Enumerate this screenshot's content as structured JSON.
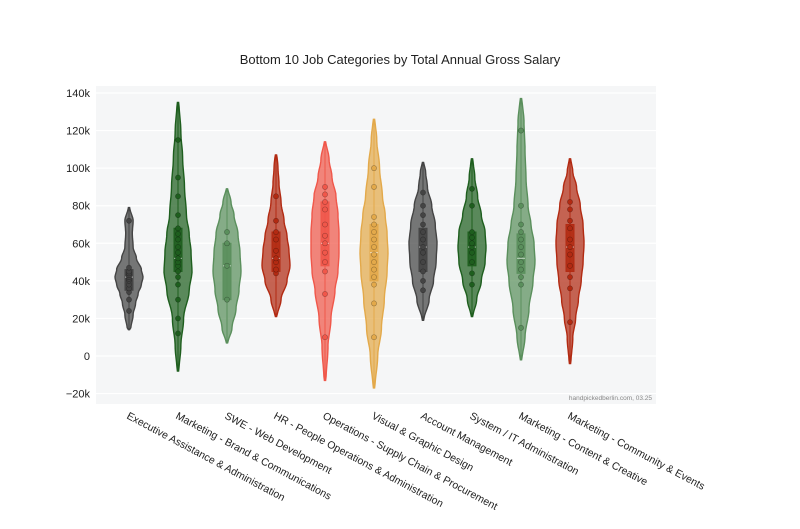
{
  "chart_data": {
    "type": "violin",
    "title": "Bottom 10 Job Categories by Total Annual Gross Salary",
    "xlabel": "",
    "ylabel": "",
    "ylim": [
      -25000,
      145000
    ],
    "yticks": [
      -20000,
      0,
      20000,
      40000,
      60000,
      80000,
      100000,
      120000,
      140000
    ],
    "ytick_labels": [
      "−20k",
      "0",
      "20k",
      "40k",
      "60k",
      "80k",
      "100k",
      "120k",
      "140k"
    ],
    "credit": "handpickedberlin.com, 03.25",
    "grid": true,
    "series": [
      {
        "name": "Executive Assistance & Administration",
        "color": "#444444",
        "min": 14000,
        "max": 79000,
        "q1": 35000,
        "median": 42000,
        "q3": 46000,
        "profile": [
          [
            14000,
            2
          ],
          [
            22000,
            5
          ],
          [
            28000,
            8
          ],
          [
            33000,
            11
          ],
          [
            38000,
            15
          ],
          [
            42000,
            17
          ],
          [
            46000,
            15
          ],
          [
            52000,
            9
          ],
          [
            58000,
            5
          ],
          [
            65000,
            4
          ],
          [
            72000,
            5
          ],
          [
            79000,
            1
          ]
        ],
        "points": [
          24000,
          30000,
          34000,
          36000,
          38000,
          40000,
          41000,
          42000,
          43000,
          44000,
          45000,
          47000,
          72000
        ]
      },
      {
        "name": "Marketing - Brand & Communications",
        "color": "#1e5e1e",
        "min": -8000,
        "max": 135000,
        "q1": 45000,
        "median": 52000,
        "q3": 68000,
        "profile": [
          [
            -8000,
            1
          ],
          [
            5000,
            3
          ],
          [
            20000,
            6
          ],
          [
            35000,
            12
          ],
          [
            45000,
            15
          ],
          [
            55000,
            14
          ],
          [
            65000,
            12
          ],
          [
            75000,
            9
          ],
          [
            90000,
            7
          ],
          [
            105000,
            5
          ],
          [
            120000,
            3
          ],
          [
            135000,
            1
          ]
        ],
        "points": [
          12000,
          20000,
          30000,
          38000,
          42000,
          45000,
          48000,
          50000,
          52000,
          55000,
          58000,
          62000,
          65000,
          68000,
          75000,
          85000,
          95000,
          115000
        ]
      },
      {
        "name": "SWE - Web Development",
        "color": "#5a8f5c",
        "min": 7000,
        "max": 89000,
        "q1": 30000,
        "median": 48000,
        "q3": 60000,
        "profile": [
          [
            7000,
            1
          ],
          [
            15000,
            5
          ],
          [
            25000,
            9
          ],
          [
            35000,
            12
          ],
          [
            45000,
            14
          ],
          [
            55000,
            13
          ],
          [
            65000,
            11
          ],
          [
            75000,
            7
          ],
          [
            82000,
            4
          ],
          [
            89000,
            1
          ]
        ],
        "points": [
          30000,
          48000,
          60000,
          66000
        ]
      },
      {
        "name": "HR - People Operations & Administration",
        "color": "#b22a12",
        "min": 21000,
        "max": 107000,
        "q1": 45000,
        "median": 52000,
        "q3": 66000,
        "profile": [
          [
            21000,
            1
          ],
          [
            30000,
            5
          ],
          [
            40000,
            11
          ],
          [
            48000,
            14
          ],
          [
            56000,
            13
          ],
          [
            64000,
            11
          ],
          [
            72000,
            8
          ],
          [
            82000,
            5
          ],
          [
            92000,
            3
          ],
          [
            100000,
            2
          ],
          [
            107000,
            1
          ]
        ],
        "points": [
          44000,
          46000,
          50000,
          52000,
          56000,
          62000,
          66000,
          72000,
          85000
        ]
      },
      {
        "name": "Operations - Supply Chain & Procurement",
        "color": "#f0574a",
        "min": -13000,
        "max": 114000,
        "q1": 48000,
        "median": 60000,
        "q3": 82000,
        "profile": [
          [
            -13000,
            1
          ],
          [
            5000,
            3
          ],
          [
            20000,
            6
          ],
          [
            35000,
            10
          ],
          [
            45000,
            13
          ],
          [
            55000,
            14
          ],
          [
            65000,
            14
          ],
          [
            75000,
            13
          ],
          [
            85000,
            11
          ],
          [
            95000,
            7
          ],
          [
            105000,
            4
          ],
          [
            114000,
            1
          ]
        ],
        "points": [
          10000,
          33000,
          45000,
          50000,
          55000,
          60000,
          64000,
          70000,
          78000,
          82000,
          86000,
          90000
        ]
      },
      {
        "name": "Visual & Graphic Design",
        "color": "#e3a94a",
        "min": -17000,
        "max": 126000,
        "q1": 40000,
        "median": 55000,
        "q3": 70000,
        "profile": [
          [
            -17000,
            1
          ],
          [
            0,
            4
          ],
          [
            15000,
            8
          ],
          [
            30000,
            11
          ],
          [
            45000,
            14
          ],
          [
            55000,
            15
          ],
          [
            65000,
            14
          ],
          [
            75000,
            12
          ],
          [
            85000,
            9
          ],
          [
            100000,
            6
          ],
          [
            115000,
            3
          ],
          [
            126000,
            1
          ]
        ],
        "points": [
          10000,
          28000,
          38000,
          42000,
          46000,
          50000,
          54000,
          58000,
          62000,
          66000,
          70000,
          74000,
          90000,
          100000
        ]
      },
      {
        "name": "Account Management",
        "color": "#444444",
        "min": 19000,
        "max": 103000,
        "q1": 45000,
        "median": 58000,
        "q3": 68000,
        "profile": [
          [
            19000,
            1
          ],
          [
            30000,
            7
          ],
          [
            40000,
            12
          ],
          [
            50000,
            15
          ],
          [
            60000,
            16
          ],
          [
            70000,
            14
          ],
          [
            80000,
            10
          ],
          [
            90000,
            5
          ],
          [
            98000,
            3
          ],
          [
            103000,
            1
          ]
        ],
        "points": [
          35000,
          40000,
          45000,
          50000,
          55000,
          58000,
          62000,
          66000,
          70000,
          75000,
          80000,
          87000
        ]
      },
      {
        "name": "System / IT Administration",
        "color": "#1e5e1e",
        "min": 21000,
        "max": 105000,
        "q1": 48000,
        "median": 58000,
        "q3": 66000,
        "profile": [
          [
            21000,
            1
          ],
          [
            30000,
            5
          ],
          [
            40000,
            10
          ],
          [
            50000,
            14
          ],
          [
            58000,
            15
          ],
          [
            66000,
            14
          ],
          [
            75000,
            10
          ],
          [
            85000,
            6
          ],
          [
            95000,
            3
          ],
          [
            105000,
            1
          ]
        ],
        "points": [
          38000,
          44000,
          50000,
          55000,
          58000,
          60000,
          63000,
          66000,
          80000,
          89000
        ]
      },
      {
        "name": "Marketing - Content & Creative",
        "color": "#5a8f5c",
        "min": -2000,
        "max": 137000,
        "q1": 44000,
        "median": 52000,
        "q3": 65000,
        "profile": [
          [
            -2000,
            1
          ],
          [
            10000,
            4
          ],
          [
            25000,
            8
          ],
          [
            40000,
            12
          ],
          [
            50000,
            14
          ],
          [
            60000,
            13
          ],
          [
            70000,
            10
          ],
          [
            80000,
            7
          ],
          [
            95000,
            5
          ],
          [
            110000,
            4
          ],
          [
            125000,
            3
          ],
          [
            137000,
            1
          ]
        ],
        "points": [
          15000,
          38000,
          42000,
          46000,
          50000,
          54000,
          58000,
          62000,
          66000,
          70000,
          80000,
          120000
        ]
      },
      {
        "name": "Marketing - Community & Events",
        "color": "#b22a12",
        "min": -4000,
        "max": 105000,
        "q1": 45000,
        "median": 58000,
        "q3": 70000,
        "profile": [
          [
            -4000,
            1
          ],
          [
            10000,
            3
          ],
          [
            20000,
            6
          ],
          [
            30000,
            9
          ],
          [
            40000,
            12
          ],
          [
            50000,
            14
          ],
          [
            60000,
            15
          ],
          [
            70000,
            14
          ],
          [
            80000,
            11
          ],
          [
            90000,
            7
          ],
          [
            98000,
            3
          ],
          [
            105000,
            1
          ]
        ],
        "points": [
          18000,
          36000,
          42000,
          48000,
          54000,
          58000,
          62000,
          68000,
          72000,
          78000,
          82000
        ]
      }
    ]
  }
}
